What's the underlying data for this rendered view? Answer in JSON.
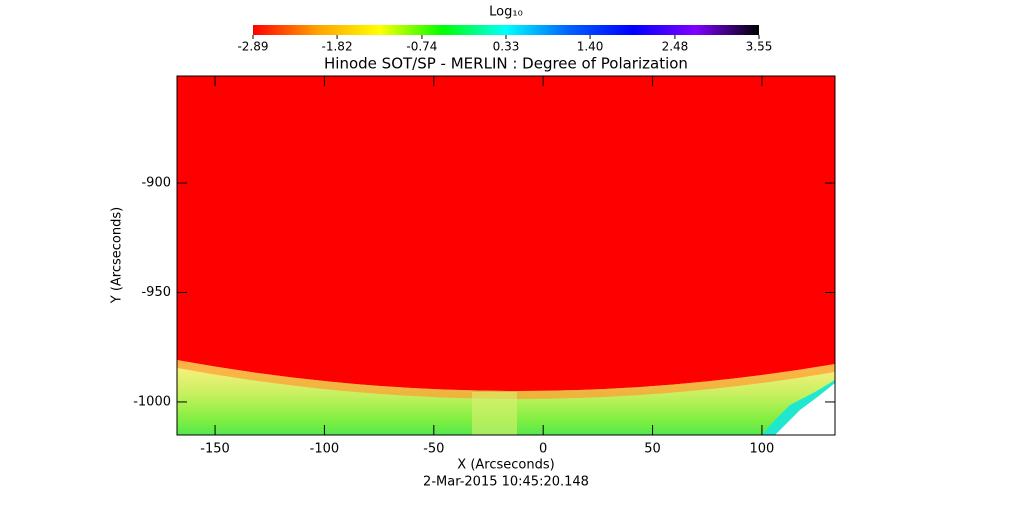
{
  "chart_data": {
    "type": "heatmap",
    "title": "Hinode SOT/SP - MERLIN : Degree of Polarization",
    "subtitle": "2-Mar-2015 10:45:20.148",
    "x_label": "X (Arcseconds)",
    "y_label": "Y (Arcseconds)",
    "xlim": [
      -167.4,
      133.4
    ],
    "xticks": [
      -150,
      -100,
      -50,
      0,
      50,
      100
    ],
    "ylim": [
      -1015.1,
      -851.1
    ],
    "yticks": [
      -1000,
      -950,
      -900
    ],
    "colorbar": {
      "title": "Log₁₀",
      "clim": [
        -2.89,
        3.55
      ],
      "ticks": [
        -2.89,
        -1.82,
        -0.74,
        0.33,
        {
          "value": 1.4,
          "label": "1.40"
        },
        2.48,
        3.55
      ],
      "colors": [
        "#ff0000",
        "#ffa000",
        "#ffff00",
        "#00ff00",
        "#00ffff",
        "#0060ff",
        "#0000ff",
        "#8000ff",
        "#000000"
      ]
    }
  }
}
